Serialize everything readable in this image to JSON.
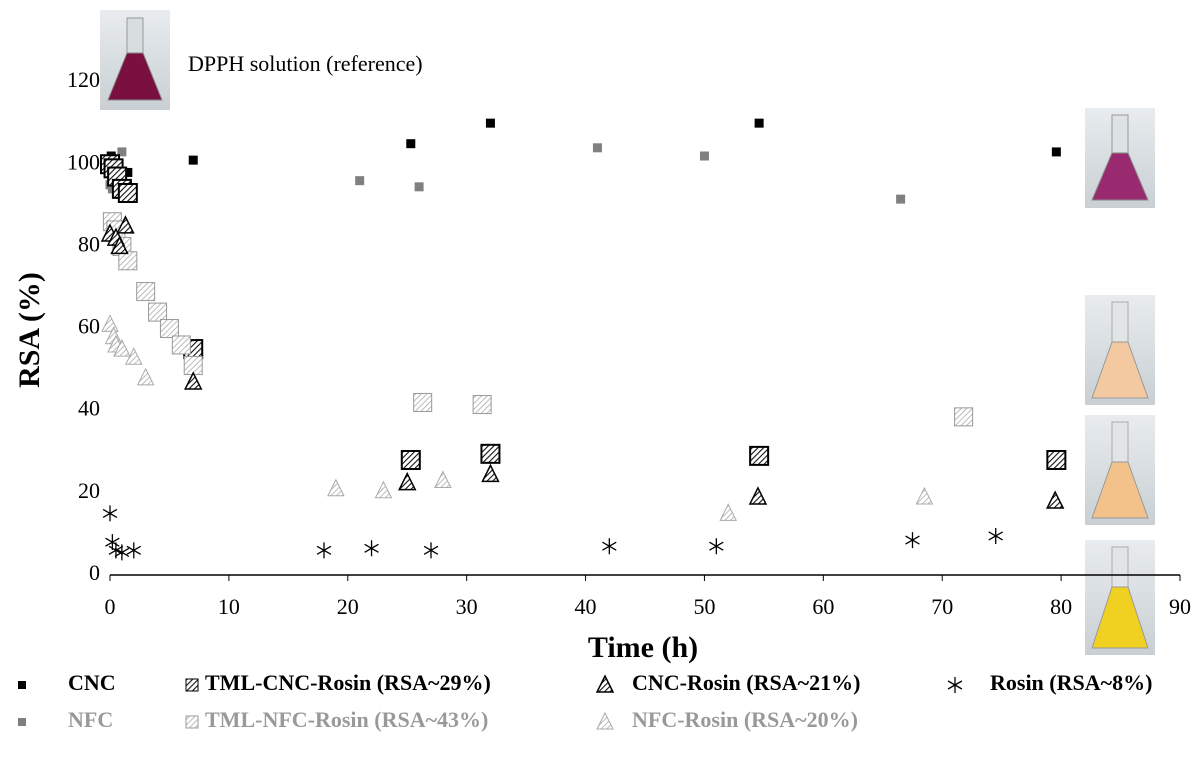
{
  "chart_data": {
    "type": "scatter",
    "annotation": "DPPH solution (reference)",
    "x_label": "Time (h)",
    "y_label": "RSA (%)",
    "xlim": [
      0,
      90
    ],
    "xticks": [
      0,
      10,
      20,
      30,
      40,
      50,
      60,
      70,
      80,
      90
    ],
    "ylim": [
      0,
      130
    ],
    "yticks": [
      0,
      20,
      40,
      60,
      80,
      100,
      120
    ],
    "series": [
      {
        "name": "CNC",
        "color": "#000000",
        "marker": "square",
        "x": [
          0,
          0.1,
          0.3,
          1.5,
          7,
          25.3,
          32,
          54.6,
          79.6
        ],
        "values": [
          100,
          102,
          98,
          98,
          101,
          105,
          110,
          110,
          103
        ]
      },
      {
        "name": "NFC",
        "color": "#808080",
        "marker": "square",
        "x": [
          0,
          0.2,
          1,
          21,
          26,
          41,
          50,
          66.5
        ],
        "values": [
          95,
          94,
          103,
          96,
          94.5,
          104,
          102,
          91.5
        ]
      },
      {
        "name": "TML-CNC-Rosin (RSA~29%)",
        "color": "#000000",
        "marker": "hatched-square",
        "x": [
          0,
          0.3,
          0.6,
          1,
          1.5,
          7,
          25.3,
          32,
          54.6,
          79.6
        ],
        "values": [
          100,
          99,
          97,
          94,
          93,
          55,
          28,
          29.5,
          29,
          28
        ]
      },
      {
        "name": "TML-NFC-Rosin (RSA~43%)",
        "color": "#999999",
        "marker": "hatched-square",
        "x": [
          0.2,
          0.5,
          1,
          1.5,
          3,
          4,
          5,
          6,
          7,
          26.3,
          31.3,
          71.8
        ],
        "values": [
          86,
          84,
          80,
          76.5,
          69,
          64,
          60,
          56,
          51,
          42,
          41.5,
          38.5
        ]
      },
      {
        "name": "CNC-Rosin (RSA~21%)",
        "color": "#000000",
        "marker": "hatched-triangle",
        "x": [
          0,
          0.5,
          0.8,
          1.3,
          7,
          25,
          32,
          54.5,
          79.5
        ],
        "values": [
          83,
          82,
          80,
          85,
          47,
          22.5,
          24.5,
          19,
          18
        ]
      },
      {
        "name": "NFC-Rosin (RSA~20%)",
        "color": "#999999",
        "marker": "hatched-triangle",
        "x": [
          0,
          0.3,
          0.5,
          1,
          2,
          3,
          19,
          23,
          28,
          52,
          68.5
        ],
        "values": [
          61,
          58,
          56,
          55,
          53,
          48,
          21,
          20.5,
          23,
          15,
          19
        ]
      },
      {
        "name": "Rosin (RSA~8%)",
        "color": "#000000",
        "marker": "asterisk",
        "x": [
          0,
          0.2,
          0.5,
          1,
          2,
          18,
          22,
          27,
          42,
          51,
          67.5,
          74.5
        ],
        "values": [
          15,
          8,
          6,
          5.5,
          6,
          6,
          6.5,
          6,
          7,
          7,
          8.5,
          9.5
        ]
      }
    ]
  }
}
